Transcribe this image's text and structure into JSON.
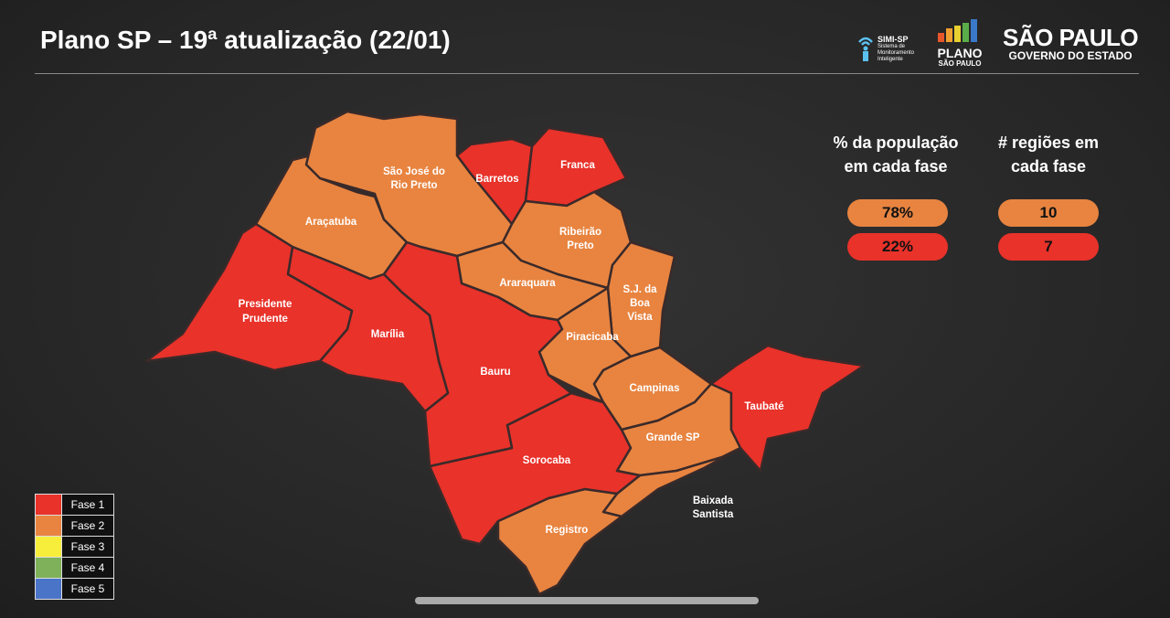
{
  "title": "Plano SP – 19ª atualização (22/01)",
  "logos": {
    "simi": {
      "name": "SIMI-SP",
      "subtitle": "Sistema de Monitoramento Inteligente"
    },
    "plano": {
      "line1": "PLANO",
      "line2": "SÃO PAULO"
    },
    "governo": {
      "line1": "SÃO PAULO",
      "line2": "GOVERNO DO ESTADO"
    }
  },
  "colors": {
    "fase1": "#e8322a",
    "fase2": "#e88440",
    "fase3": "#f7ee3c",
    "fase4": "#7fb05a",
    "fase5": "#4a74c8"
  },
  "regions": [
    {
      "name": "Araçatuba",
      "fase": 2
    },
    {
      "name": "São José do Rio Preto",
      "fase": 2
    },
    {
      "name": "Barretos",
      "fase": 1
    },
    {
      "name": "Franca",
      "fase": 1
    },
    {
      "name": "Ribeirão Preto",
      "fase": 2
    },
    {
      "name": "Araraquara",
      "fase": 2
    },
    {
      "name": "S.J. da Boa Vista",
      "fase": 2
    },
    {
      "name": "Piracicaba",
      "fase": 2
    },
    {
      "name": "Campinas",
      "fase": 2
    },
    {
      "name": "Grande SP",
      "fase": 2
    },
    {
      "name": "Taubaté",
      "fase": 1
    },
    {
      "name": "Baixada Santista",
      "fase": 2
    },
    {
      "name": "Registro",
      "fase": 2
    },
    {
      "name": "Sorocaba",
      "fase": 1
    },
    {
      "name": "Bauru",
      "fase": 1
    },
    {
      "name": "Marília",
      "fase": 1
    },
    {
      "name": "Presidente Prudente",
      "fase": 1
    }
  ],
  "stats": {
    "population_header": "% da população em cada fase",
    "regions_header": "# regiões em cada fase",
    "rows": [
      {
        "fase": 2,
        "population": "78%",
        "regions": "10"
      },
      {
        "fase": 1,
        "population": "22%",
        "regions": "7"
      }
    ]
  },
  "legend": [
    "Fase 1",
    "Fase 2",
    "Fase 3",
    "Fase 4",
    "Fase 5"
  ]
}
